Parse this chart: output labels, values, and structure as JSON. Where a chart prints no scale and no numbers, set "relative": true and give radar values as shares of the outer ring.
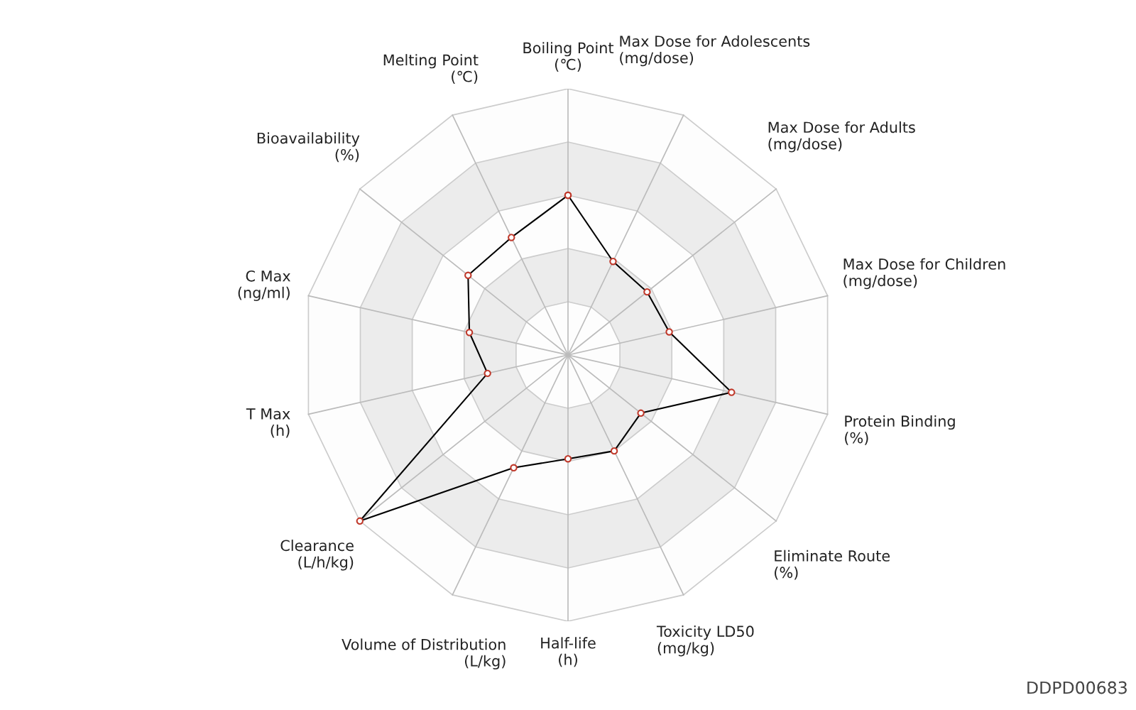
{
  "chart_data": {
    "type": "radar",
    "relative": true,
    "grid": true,
    "marker": "circle",
    "line_style": "solid",
    "categories": [
      "Boiling Point\n(℃)",
      "Max Dose for Adolescents\n(mg/dose)",
      "Max Dose for Adults\n(mg/dose)",
      "Max Dose for Children\n(mg/dose)",
      "Protein Binding\n(%)",
      "Eliminate Route\n(%)",
      "Toxicity LD50\n(mg/kg)",
      "Half-life\n(h)",
      "Volume of Distribution\n(L/kg)",
      "Clearance\n(L/h/kg)",
      "T Max\n(h)",
      "C Max\n(ng/ml)",
      "Bioavailability\n(%)",
      "Melting Point\n(℃)"
    ],
    "series": [
      {
        "color": "#000000",
        "values": [
          0.6,
          0.39,
          0.38,
          0.39,
          0.63,
          0.35,
          0.4,
          0.39,
          0.47,
          1.0,
          0.31,
          0.38,
          0.48,
          0.49
        ]
      }
    ],
    "annotations": [
      "DDPD00683"
    ]
  }
}
